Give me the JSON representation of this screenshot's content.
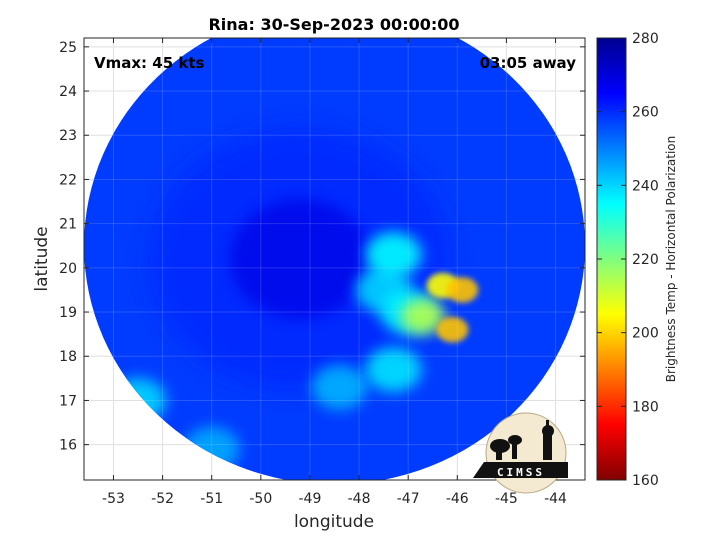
{
  "chart_data": {
    "type": "heatmap",
    "title": "Rina: 30-Sep-2023 00:00:00",
    "xlabel": "longitude",
    "ylabel": "latitude",
    "xlim": [
      -53.6,
      -43.4
    ],
    "ylim": [
      15.2,
      25.2
    ],
    "x_ticks": [
      -53,
      -52,
      -51,
      -50,
      -49,
      -48,
      -47,
      -46,
      -45,
      -44
    ],
    "y_ticks": [
      16,
      17,
      18,
      19,
      20,
      21,
      22,
      23,
      24,
      25
    ],
    "grid": true,
    "swath": {
      "center_lon": -48.5,
      "center_lat": 20.5,
      "radius_lon": 5.1,
      "radius_lat": 5.4
    },
    "background_temp": 258,
    "eye_center": {
      "lon": -49.2,
      "lat": 20.2,
      "temp": 262
    },
    "features": [
      {
        "lon": -47.0,
        "lat": 19.0,
        "temp": 236
      },
      {
        "lon": -46.3,
        "lat": 19.6,
        "temp": 205
      },
      {
        "lon": -45.9,
        "lat": 19.5,
        "temp": 198
      },
      {
        "lon": -46.1,
        "lat": 18.6,
        "temp": 198
      },
      {
        "lon": -46.7,
        "lat": 18.9,
        "temp": 214
      },
      {
        "lon": -47.3,
        "lat": 20.3,
        "temp": 235
      },
      {
        "lon": -47.5,
        "lat": 19.5,
        "temp": 240
      },
      {
        "lon": -47.3,
        "lat": 17.7,
        "temp": 238
      },
      {
        "lon": -48.4,
        "lat": 17.3,
        "temp": 244
      },
      {
        "lon": -52.5,
        "lat": 17.0,
        "temp": 240
      },
      {
        "lon": -51.0,
        "lat": 15.9,
        "temp": 245
      }
    ],
    "colorbar": {
      "label": "Brightness Temp - Horizontal Polarization",
      "min": 160,
      "max": 280,
      "ticks": [
        160,
        180,
        200,
        220,
        240,
        260,
        280
      ],
      "colormap": "jet"
    },
    "annotations": {
      "vmax": "Vmax: 45 kts",
      "away": "03:05 away"
    }
  },
  "logo": {
    "text": "CIMSS"
  }
}
